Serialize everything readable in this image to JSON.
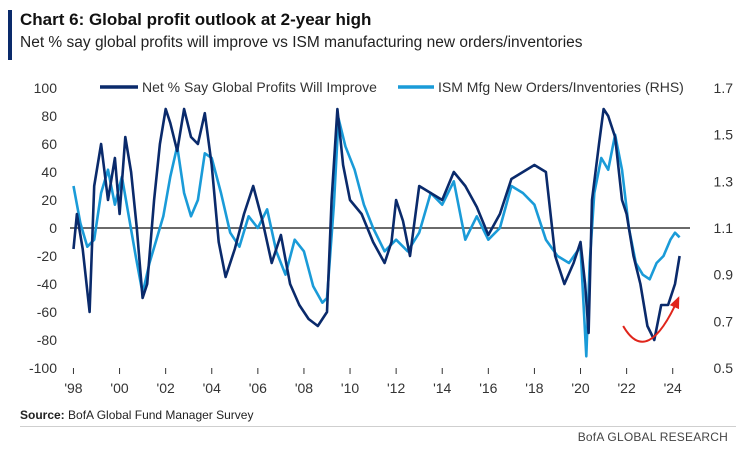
{
  "header": {
    "title": "Chart 6: Global profit outlook at 2-year high",
    "subtitle": "Net % say global profits will improve vs ISM manufacturing new orders/inventories"
  },
  "footer": {
    "source_label": "Source:",
    "source_text": "BofA Global Fund Manager Survey",
    "credit": "BofA GLOBAL RESEARCH"
  },
  "chart_data": {
    "type": "line",
    "x_ticks": [
      "'98",
      "'00",
      "'02",
      "'04",
      "'06",
      "'08",
      "'10",
      "'12",
      "'14",
      "'16",
      "'18",
      "'20",
      "'22",
      "'24"
    ],
    "x_tick_years": [
      1998,
      2000,
      2002,
      2004,
      2006,
      2008,
      2010,
      2012,
      2014,
      2016,
      2018,
      2020,
      2022,
      2024
    ],
    "xlim": [
      1997.85,
      2024.75
    ],
    "ylim_left": [
      -100,
      100
    ],
    "yticks_left": [
      "100",
      "80",
      "60",
      "40",
      "20",
      "0",
      "-20",
      "-40",
      "-60",
      "-80",
      "-100"
    ],
    "ylim_right": [
      0.5,
      1.7
    ],
    "yticks_right": [
      "1.7",
      "1.5",
      "1.3",
      "1.1",
      "0.9",
      "0.7",
      "0.5"
    ],
    "zero_line": 0,
    "series": [
      {
        "name": "Net % Say Global Profits Will Improve",
        "axis": "left",
        "color": "#0a2a6b",
        "x": [
          1998.0,
          1998.15,
          1998.4,
          1998.7,
          1998.9,
          1999.2,
          1999.5,
          1999.8,
          2000.0,
          2000.25,
          2000.5,
          2000.75,
          2001.0,
          2001.2,
          2001.5,
          2001.75,
          2002.0,
          2002.2,
          2002.5,
          2002.8,
          2003.1,
          2003.4,
          2003.7,
          2004.0,
          2004.3,
          2004.6,
          2005.0,
          2005.4,
          2005.8,
          2006.2,
          2006.6,
          2007.0,
          2007.4,
          2007.8,
          2008.2,
          2008.6,
          2009.0,
          2009.2,
          2009.45,
          2009.7,
          2010.0,
          2010.5,
          2011.0,
          2011.5,
          2011.8,
          2012.0,
          2012.3,
          2012.6,
          2013.0,
          2013.5,
          2014.0,
          2014.5,
          2015.0,
          2015.5,
          2016.0,
          2016.5,
          2017.0,
          2017.5,
          2018.0,
          2018.5,
          2018.9,
          2019.3,
          2019.7,
          2020.0,
          2020.2,
          2020.35,
          2020.5,
          2020.8,
          2021.0,
          2021.2,
          2021.5,
          2021.8,
          2022.0,
          2022.3,
          2022.6,
          2022.9,
          2023.2,
          2023.5,
          2023.8,
          2024.1,
          2024.3
        ],
        "values": [
          -15,
          10,
          -15,
          -60,
          30,
          60,
          20,
          50,
          10,
          65,
          40,
          0,
          -50,
          -40,
          20,
          60,
          85,
          75,
          55,
          85,
          65,
          60,
          82,
          45,
          -10,
          -35,
          -15,
          10,
          30,
          5,
          -25,
          -5,
          -40,
          -55,
          -65,
          -70,
          -60,
          20,
          85,
          45,
          20,
          10,
          -10,
          -25,
          -10,
          20,
          5,
          -20,
          30,
          25,
          20,
          40,
          30,
          15,
          -5,
          10,
          35,
          40,
          45,
          40,
          -20,
          -40,
          -25,
          -10,
          -40,
          -75,
          20,
          60,
          85,
          80,
          65,
          20,
          10,
          -20,
          -40,
          -70,
          -80,
          -55,
          -55,
          -40,
          -20
        ]
      },
      {
        "name": "ISM Mfg New Orders/Inventories (RHS)",
        "axis": "right",
        "color": "#1a9bd8",
        "x": [
          1998.0,
          1998.3,
          1998.6,
          1998.9,
          1999.2,
          1999.5,
          1999.8,
          2000.1,
          2000.4,
          2000.7,
          2001.0,
          2001.3,
          2001.6,
          2001.9,
          2002.2,
          2002.5,
          2002.8,
          2003.1,
          2003.4,
          2003.7,
          2004.0,
          2004.4,
          2004.8,
          2005.2,
          2005.6,
          2006.0,
          2006.4,
          2006.8,
          2007.2,
          2007.6,
          2008.0,
          2008.4,
          2008.8,
          2009.0,
          2009.3,
          2009.5,
          2009.8,
          2010.2,
          2010.6,
          2011.0,
          2011.5,
          2012.0,
          2012.5,
          2013.0,
          2013.5,
          2014.0,
          2014.5,
          2015.0,
          2015.5,
          2016.0,
          2016.5,
          2017.0,
          2017.5,
          2018.0,
          2018.5,
          2019.0,
          2019.5,
          2020.0,
          2020.25,
          2020.4,
          2020.6,
          2020.9,
          2021.2,
          2021.5,
          2021.8,
          2022.1,
          2022.4,
          2022.7,
          2023.0,
          2023.3,
          2023.6,
          2023.9,
          2024.1,
          2024.3
        ],
        "values": [
          1.28,
          1.12,
          1.02,
          1.05,
          1.25,
          1.35,
          1.2,
          1.32,
          1.15,
          0.98,
          0.82,
          0.95,
          1.05,
          1.15,
          1.32,
          1.45,
          1.25,
          1.15,
          1.22,
          1.42,
          1.4,
          1.25,
          1.08,
          1.02,
          1.15,
          1.1,
          1.18,
          1.0,
          0.9,
          1.05,
          1.0,
          0.85,
          0.78,
          0.8,
          1.2,
          1.57,
          1.45,
          1.35,
          1.2,
          1.1,
          1.0,
          1.05,
          1.0,
          1.08,
          1.25,
          1.2,
          1.3,
          1.05,
          1.15,
          1.05,
          1.1,
          1.28,
          1.25,
          1.2,
          1.05,
          0.98,
          0.95,
          1.02,
          0.55,
          0.95,
          1.25,
          1.4,
          1.35,
          1.5,
          1.35,
          1.1,
          0.95,
          0.9,
          0.88,
          0.95,
          0.98,
          1.05,
          1.08,
          1.06
        ]
      }
    ],
    "annotation": {
      "type": "curved-arrow",
      "color": "#e0251b",
      "from_x": 2021.85,
      "from_y": -70,
      "via_x": 2022.9,
      "via_y": -100,
      "to_x": 2024.25,
      "to_y": -50
    }
  }
}
